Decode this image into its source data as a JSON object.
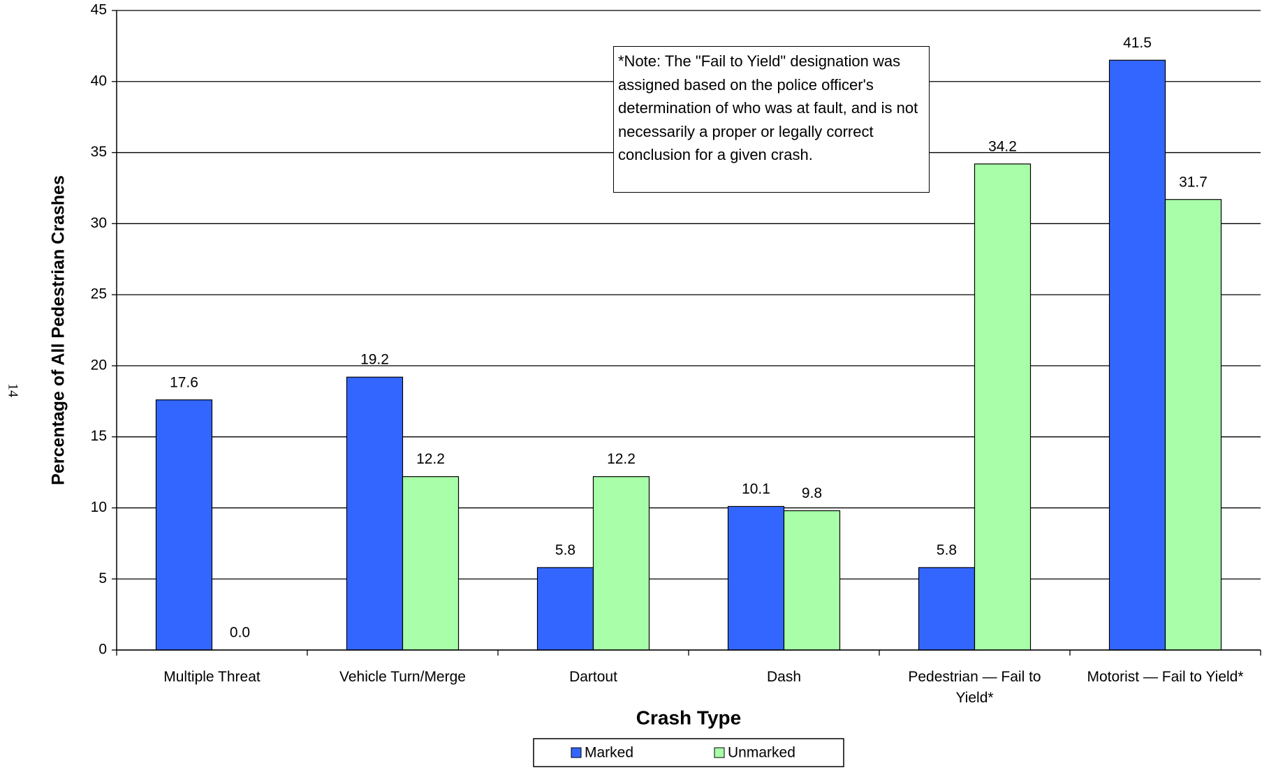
{
  "chart_data": {
    "type": "bar",
    "page_number": "14",
    "y_label": "Percentage of All Pedestrian Crashes",
    "x_label": "Crash Type",
    "annotation": "*Note:  The \"Fail to Yield\" designation was assigned based on the police officer's determination of who was at fault, and is not necessarily a proper or legally correct conclusion for a given crash.",
    "categories": [
      "Multiple Threat",
      "Vehicle Turn/Merge",
      "Dartout",
      "Dash",
      "Pedestrian — Fail to Yield*",
      "Motorist —  Fail to Yield*"
    ],
    "series": [
      {
        "name": "Marked",
        "color": "#3366FF",
        "values": [
          17.6,
          19.2,
          5.8,
          10.1,
          5.8,
          41.5
        ],
        "value_labels": [
          "17.6",
          "19.2",
          "5.8",
          "10.1",
          "5.8",
          "41.5"
        ]
      },
      {
        "name": "Unmarked",
        "color": "#A9FFA9",
        "values": [
          0.0,
          12.2,
          12.2,
          9.8,
          34.2,
          31.7
        ],
        "value_labels": [
          "0.0",
          "12.2",
          "12.2",
          "9.8",
          "34.2",
          "31.7"
        ]
      }
    ],
    "ylim": [
      0,
      45
    ],
    "yticks": [
      0,
      5,
      10,
      15,
      20,
      25,
      30,
      35,
      40,
      45
    ],
    "grid": true,
    "legend": "bottom"
  }
}
